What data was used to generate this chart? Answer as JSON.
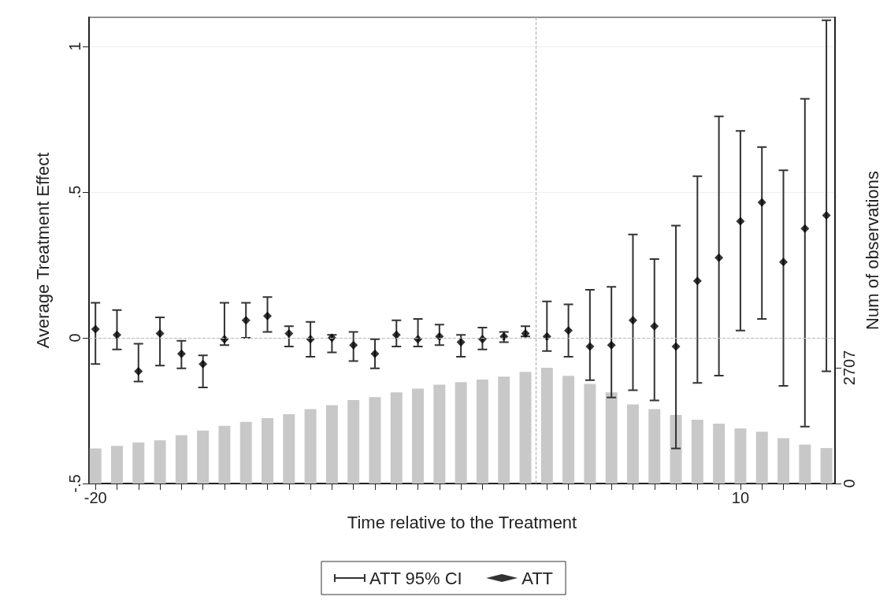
{
  "chart_data": {
    "type": "scatter",
    "xlabel": "Time relative to the Treatment",
    "ylabel": "Average Treatment Effect",
    "y2label": "Num of observations",
    "x": [
      -20,
      -19,
      -18,
      -17,
      -16,
      -15,
      -14,
      -13,
      -12,
      -11,
      -10,
      -9,
      -8,
      -7,
      -6,
      -5,
      -4,
      -3,
      -2,
      -1,
      0,
      1,
      2,
      3,
      4,
      5,
      6,
      7,
      8,
      9,
      10,
      11,
      12,
      13,
      14
    ],
    "series": [
      {
        "name": "ATT",
        "color": "#000000",
        "marker": "diamond",
        "values": [
          0.03,
          0.01,
          -0.115,
          0.015,
          -0.055,
          -0.09,
          -0.005,
          0.06,
          0.075,
          0.015,
          -0.005,
          0.0,
          -0.025,
          -0.055,
          0.01,
          -0.005,
          0.005,
          -0.015,
          -0.005,
          0.005,
          0.015,
          0.005,
          0.025,
          -0.03,
          -0.025,
          0.06,
          0.04,
          -0.03,
          0.195,
          0.275,
          0.4,
          0.465,
          0.26,
          0.375,
          0.42
        ],
        "errors": [
          [
            -0.09,
            0.12
          ],
          [
            -0.04,
            0.095
          ],
          [
            -0.15,
            -0.02
          ],
          [
            -0.095,
            0.07
          ],
          [
            -0.105,
            -0.01
          ],
          [
            -0.17,
            -0.06
          ],
          [
            -0.025,
            0.12
          ],
          [
            0.0,
            0.12
          ],
          [
            0.02,
            0.14
          ],
          [
            -0.03,
            0.04
          ],
          [
            -0.065,
            0.055
          ],
          [
            -0.05,
            0.01
          ],
          [
            -0.08,
            0.02
          ],
          [
            -0.105,
            -0.005
          ],
          [
            -0.03,
            0.06
          ],
          [
            -0.03,
            0.065
          ],
          [
            -0.025,
            0.045
          ],
          [
            -0.065,
            0.01
          ],
          [
            -0.04,
            0.035
          ],
          [
            -0.015,
            0.02
          ],
          [
            0.005,
            0.04
          ],
          [
            -0.045,
            0.125
          ],
          [
            -0.065,
            0.115
          ],
          [
            -0.145,
            0.165
          ],
          [
            -0.205,
            0.175
          ],
          [
            -0.18,
            0.355
          ],
          [
            -0.215,
            0.27
          ],
          [
            -0.38,
            0.385
          ],
          [
            -0.155,
            0.555
          ],
          [
            -0.13,
            0.76
          ],
          [
            0.025,
            0.71
          ],
          [
            0.065,
            0.655
          ],
          [
            -0.165,
            0.575
          ],
          [
            -0.305,
            0.82
          ],
          [
            -0.115,
            1.09
          ]
        ]
      },
      {
        "type": "bar",
        "axis": "y2",
        "color": "#c8c8c8",
        "values": [
          820,
          880,
          960,
          1010,
          1130,
          1240,
          1350,
          1440,
          1530,
          1620,
          1740,
          1830,
          1950,
          2020,
          2130,
          2220,
          2310,
          2370,
          2430,
          2500,
          2610,
          2707,
          2520,
          2330,
          2130,
          1850,
          1740,
          1600,
          1490,
          1400,
          1290,
          1210,
          1060,
          910,
          830
        ]
      }
    ],
    "annotations": [
      "ATT 95% CI"
    ],
    "xlim": [
      -20.3,
      14.4
    ],
    "xticks": [
      -20,
      {
        "value": -19,
        "label": null
      },
      {
        "value": -18,
        "label": null
      },
      {
        "value": -17,
        "label": null
      },
      {
        "value": -16,
        "label": null
      },
      {
        "value": -15,
        "label": null
      },
      {
        "value": -14,
        "label": null
      },
      {
        "value": -13,
        "label": null
      },
      {
        "value": -12,
        "label": null
      },
      {
        "value": -11,
        "label": null
      },
      {
        "value": -10,
        "label": null
      },
      {
        "value": -9,
        "label": null
      },
      {
        "value": -8,
        "label": null
      },
      {
        "value": -7,
        "label": null
      },
      {
        "value": -6,
        "label": null
      },
      {
        "value": -5,
        "label": null
      },
      {
        "value": -4,
        "label": null
      },
      {
        "value": -3,
        "label": null
      },
      {
        "value": -2,
        "label": null
      },
      {
        "value": -1,
        "label": null
      },
      {
        "value": 0,
        "label": null
      },
      {
        "value": 1,
        "label": null
      },
      {
        "value": 2,
        "label": null
      },
      {
        "value": 3,
        "label": null
      },
      {
        "value": 4,
        "label": null
      },
      {
        "value": 5,
        "label": null
      },
      {
        "value": 6,
        "label": null
      },
      {
        "value": 7,
        "label": null
      },
      {
        "value": 8,
        "label": null
      },
      {
        "value": 9,
        "label": null
      },
      10,
      {
        "value": 11,
        "label": null
      },
      {
        "value": 12,
        "label": null
      },
      {
        "value": 13,
        "label": null
      },
      {
        "value": 14,
        "label": null
      }
    ],
    "ylim": [
      -0.5,
      1.1
    ],
    "yticks": [
      {
        "value": -0.5,
        "label": "-.5"
      },
      0,
      {
        "value": 0.5,
        "label": ".5"
      },
      1
    ],
    "y2lim": [
      0,
      10900
    ],
    "y2ticks": [
      0,
      2707
    ],
    "ref_lines": [
      {
        "axis": "y",
        "value": 0,
        "color": "#bbbbbb",
        "line_style": "dashed"
      },
      {
        "axis": "x",
        "value": 0.5,
        "color": "#aaaaaa",
        "line_style": "dashed"
      }
    ],
    "grid": "y",
    "legend": "bottom"
  }
}
